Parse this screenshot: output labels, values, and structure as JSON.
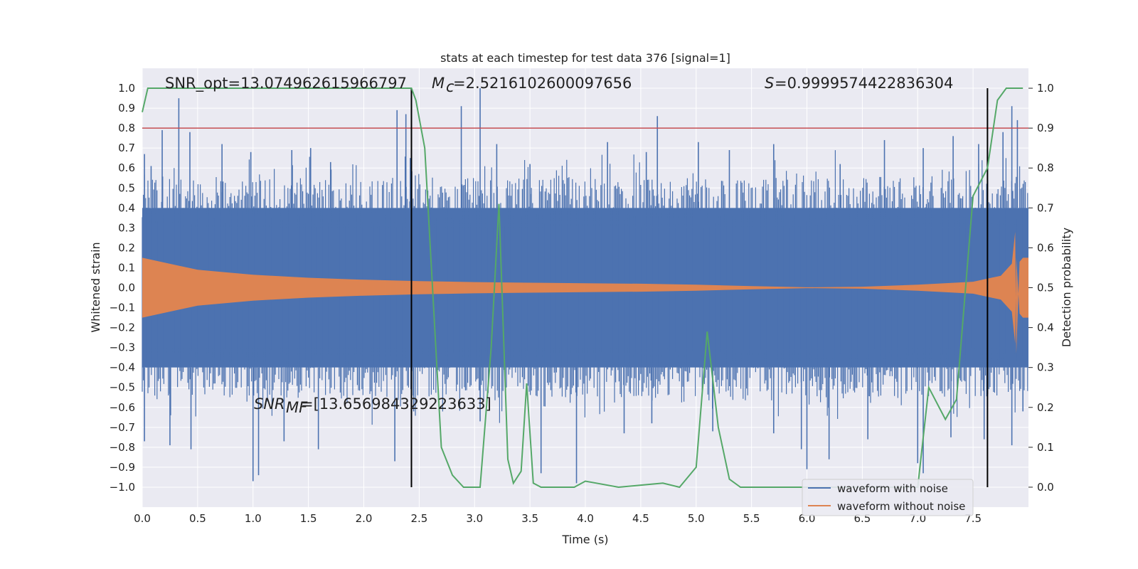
{
  "chart_data": {
    "type": "line",
    "title": "stats at each timestep for test data 376 [signal=1]",
    "xlabel": "Time (s)",
    "ylabel": "Whitened strain",
    "y2label": "Detection probability",
    "xlim": [
      0.0,
      8.0
    ],
    "ylim": [
      -1.1,
      1.1
    ],
    "y2lim": [
      -0.05,
      1.05
    ],
    "x_ticks": [
      0.0,
      0.5,
      1.0,
      1.5,
      2.0,
      2.5,
      3.0,
      3.5,
      4.0,
      4.5,
      5.0,
      5.5,
      6.0,
      6.5,
      7.0,
      7.5
    ],
    "x_tick_labels": [
      "0.0",
      "0.5",
      "1.0",
      "1.5",
      "2.0",
      "2.5",
      "3.0",
      "3.5",
      "4.0",
      "4.5",
      "5.0",
      "5.5",
      "6.0",
      "6.5",
      "7.0",
      "7.5"
    ],
    "y_ticks": [
      1.0,
      0.9,
      0.8,
      0.7,
      0.6,
      0.5,
      0.4,
      0.3,
      0.2,
      0.1,
      0.0,
      -0.1,
      -0.2,
      -0.3,
      -0.4,
      -0.5,
      -0.6,
      -0.7,
      -0.8,
      -0.9,
      -1.0
    ],
    "y_tick_labels": [
      "1.0",
      "0.9",
      "0.8",
      "0.7",
      "0.6",
      "0.5",
      "0.4",
      "0.3",
      "0.2",
      "0.1",
      "0.0",
      "−0.1",
      "−0.2",
      "−0.3",
      "−0.4",
      "−0.5",
      "−0.6",
      "−0.7",
      "−0.8",
      "−0.9",
      "−1.0"
    ],
    "y2_ticks": [
      1.0,
      0.9,
      0.8,
      0.7,
      0.6,
      0.5,
      0.4,
      0.3,
      0.2,
      0.1,
      0.0
    ],
    "y2_tick_labels": [
      "1.0",
      "0.9",
      "0.8",
      "0.7",
      "0.6",
      "0.5",
      "0.4",
      "0.3",
      "0.2",
      "0.1",
      "0.0"
    ],
    "grid": true,
    "legend_position": "bottom-right",
    "annotations": {
      "snr_opt": "SNR_opt=13.074962615966797",
      "mc": "=2.5216102600097656",
      "s": "=0.9999574422836304",
      "snr_mf": "=[13.656984329223633]"
    },
    "threshold_line": {
      "y": 0.8,
      "color": "#c44e52"
    },
    "vertical_lines": [
      {
        "x": 2.43,
        "y_top": 1.0,
        "y_bottom": -1.0,
        "color": "#000000"
      },
      {
        "x": 7.63,
        "y_top": 1.0,
        "y_bottom": -1.0,
        "color": "#000000"
      }
    ],
    "series": [
      {
        "name": "waveform with noise",
        "color": "#4c72b0",
        "description_values": {
          "envelope_core": [
            0.0,
            0.45,
            8.0,
            0.45
          ],
          "peak_max": 1.0
        },
        "peaks_up": [
          [
            0.02,
            0.67
          ],
          [
            0.08,
            0.61
          ],
          [
            0.18,
            0.79
          ],
          [
            0.33,
            0.95
          ],
          [
            0.43,
            0.78
          ],
          [
            0.72,
            0.72
          ],
          [
            0.98,
            0.68
          ],
          [
            1.35,
            0.69
          ],
          [
            1.52,
            0.7
          ],
          [
            1.7,
            0.63
          ],
          [
            2.3,
            0.89
          ],
          [
            2.38,
            0.87
          ],
          [
            2.42,
            0.65
          ],
          [
            2.88,
            0.91
          ],
          [
            3.05,
            1.0
          ],
          [
            3.2,
            0.72
          ],
          [
            3.5,
            0.62
          ],
          [
            4.2,
            0.73
          ],
          [
            4.55,
            0.68
          ],
          [
            4.65,
            0.86
          ],
          [
            5.02,
            0.73
          ],
          [
            5.3,
            0.69
          ],
          [
            5.7,
            0.72
          ],
          [
            6.3,
            0.62
          ],
          [
            6.7,
            0.74
          ],
          [
            7.05,
            0.7
          ],
          [
            7.32,
            0.76
          ],
          [
            7.55,
            0.72
          ],
          [
            7.77,
            0.78
          ],
          [
            7.85,
            0.91
          ],
          [
            7.9,
            0.84
          ]
        ],
        "peaks_down": [
          [
            0.02,
            -0.77
          ],
          [
            0.25,
            -0.79
          ],
          [
            0.44,
            -0.81
          ],
          [
            1.0,
            -0.97
          ],
          [
            1.05,
            -0.94
          ],
          [
            1.28,
            -0.77
          ],
          [
            1.59,
            -0.81
          ],
          [
            2.28,
            -0.87
          ],
          [
            2.45,
            -0.62
          ],
          [
            3.05,
            -0.67
          ],
          [
            3.6,
            -0.93
          ],
          [
            3.92,
            -0.98
          ],
          [
            4.35,
            -0.73
          ],
          [
            4.6,
            -0.68
          ],
          [
            5.15,
            -0.72
          ],
          [
            5.7,
            -0.73
          ],
          [
            5.95,
            -0.81
          ],
          [
            6.0,
            -0.91
          ],
          [
            6.2,
            -0.86
          ],
          [
            6.55,
            -0.76
          ],
          [
            7.0,
            -0.88
          ],
          [
            7.05,
            -0.93
          ],
          [
            7.3,
            -0.75
          ],
          [
            7.6,
            -0.76
          ],
          [
            7.85,
            -0.79
          ],
          [
            7.95,
            -0.62
          ]
        ]
      },
      {
        "name": "waveform without noise",
        "color": "#dd8452",
        "envelope": [
          [
            0.0,
            0.15
          ],
          [
            0.5,
            0.09
          ],
          [
            1.0,
            0.065
          ],
          [
            1.5,
            0.05
          ],
          [
            2.0,
            0.04
          ],
          [
            2.5,
            0.033
          ],
          [
            3.0,
            0.028
          ],
          [
            3.5,
            0.025
          ],
          [
            4.0,
            0.022
          ],
          [
            4.5,
            0.02
          ],
          [
            5.0,
            0.015
          ],
          [
            5.5,
            0.008
          ],
          [
            6.0,
            0.002
          ],
          [
            6.5,
            0.005
          ],
          [
            7.0,
            0.015
          ],
          [
            7.5,
            0.03
          ],
          [
            7.75,
            0.06
          ],
          [
            7.85,
            0.12
          ],
          [
            7.88,
            0.28
          ],
          [
            7.89,
            -0.33
          ],
          [
            7.92,
            0.13
          ],
          [
            7.95,
            0.15
          ],
          [
            8.0,
            0.15
          ]
        ]
      },
      {
        "name": "detection probability",
        "color": "#55a868",
        "axis": "right",
        "points": [
          [
            0.0,
            0.94
          ],
          [
            0.05,
            1.0
          ],
          [
            0.3,
            1.0
          ],
          [
            2.43,
            1.0
          ],
          [
            2.47,
            0.97
          ],
          [
            2.55,
            0.85
          ],
          [
            2.6,
            0.6
          ],
          [
            2.7,
            0.1
          ],
          [
            2.8,
            0.03
          ],
          [
            2.9,
            0.0
          ],
          [
            3.05,
            0.0
          ],
          [
            3.15,
            0.35
          ],
          [
            3.22,
            0.71
          ],
          [
            3.3,
            0.07
          ],
          [
            3.35,
            0.01
          ],
          [
            3.42,
            0.04
          ],
          [
            3.47,
            0.26
          ],
          [
            3.53,
            0.01
          ],
          [
            3.6,
            0.0
          ],
          [
            3.9,
            0.0
          ],
          [
            4.0,
            0.015
          ],
          [
            4.1,
            0.01
          ],
          [
            4.3,
            0.0
          ],
          [
            4.5,
            0.005
          ],
          [
            4.7,
            0.01
          ],
          [
            4.85,
            0.0
          ],
          [
            5.0,
            0.05
          ],
          [
            5.1,
            0.39
          ],
          [
            5.2,
            0.15
          ],
          [
            5.3,
            0.02
          ],
          [
            5.4,
            0.0
          ],
          [
            7.0,
            0.0
          ],
          [
            7.1,
            0.25
          ],
          [
            7.25,
            0.17
          ],
          [
            7.35,
            0.22
          ],
          [
            7.5,
            0.73
          ],
          [
            7.63,
            0.8
          ],
          [
            7.72,
            0.97
          ],
          [
            7.8,
            1.0
          ],
          [
            7.95,
            1.0
          ]
        ]
      }
    ]
  }
}
